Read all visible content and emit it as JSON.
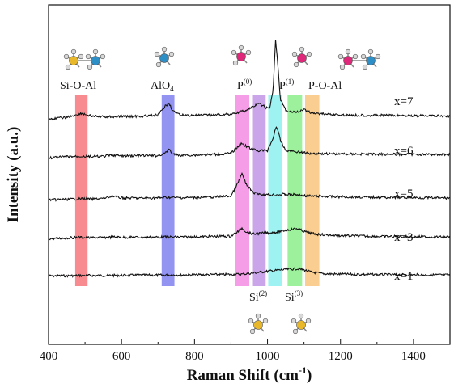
{
  "chart_data": {
    "type": "line",
    "xlabel_main": "Raman Shift (cm",
    "xlabel_sup": "-1",
    "xlabel_tail": ")",
    "ylabel": "Intensity (a.u.)",
    "xlim": [
      400,
      1500
    ],
    "x_ticks": [
      400,
      600,
      800,
      1000,
      1200,
      1400
    ],
    "series": [
      {
        "name": "x=1",
        "baseline": 0.0,
        "points": [
          [
            400,
            0.05
          ],
          [
            450,
            0.06
          ],
          [
            500,
            0.09
          ],
          [
            550,
            0.08
          ],
          [
            600,
            0.1
          ],
          [
            650,
            0.11
          ],
          [
            700,
            0.12
          ],
          [
            750,
            0.13
          ],
          [
            800,
            0.14
          ],
          [
            850,
            0.16
          ],
          [
            900,
            0.18
          ],
          [
            930,
            0.2
          ],
          [
            960,
            0.3
          ],
          [
            990,
            0.42
          ],
          [
            1020,
            0.52
          ],
          [
            1050,
            0.62
          ],
          [
            1080,
            0.68
          ],
          [
            1100,
            0.58
          ],
          [
            1120,
            0.38
          ],
          [
            1150,
            0.25
          ],
          [
            1200,
            0.2
          ],
          [
            1250,
            0.18
          ],
          [
            1300,
            0.16
          ],
          [
            1350,
            0.15
          ],
          [
            1400,
            0.14
          ],
          [
            1450,
            0.14
          ],
          [
            1500,
            0.13
          ]
        ]
      },
      {
        "name": "x=3",
        "baseline": 1.0,
        "points": [
          [
            400,
            0.05
          ],
          [
            450,
            0.1
          ],
          [
            480,
            0.18
          ],
          [
            500,
            0.14
          ],
          [
            550,
            0.15
          ],
          [
            580,
            0.2
          ],
          [
            600,
            0.17
          ],
          [
            650,
            0.18
          ],
          [
            700,
            0.19
          ],
          [
            750,
            0.2
          ],
          [
            800,
            0.22
          ],
          [
            850,
            0.24
          ],
          [
            900,
            0.28
          ],
          [
            920,
            0.7
          ],
          [
            930,
            1.0
          ],
          [
            940,
            0.7
          ],
          [
            960,
            0.45
          ],
          [
            990,
            0.55
          ],
          [
            1020,
            0.6
          ],
          [
            1050,
            0.8
          ],
          [
            1080,
            0.95
          ],
          [
            1100,
            0.7
          ],
          [
            1130,
            0.45
          ],
          [
            1200,
            0.32
          ],
          [
            1300,
            0.25
          ],
          [
            1400,
            0.22
          ],
          [
            1500,
            0.2
          ]
        ]
      },
      {
        "name": "x=5",
        "baseline": 2.0,
        "points": [
          [
            400,
            0.05
          ],
          [
            450,
            0.1
          ],
          [
            490,
            0.15
          ],
          [
            520,
            0.12
          ],
          [
            550,
            0.18
          ],
          [
            575,
            0.38
          ],
          [
            600,
            0.22
          ],
          [
            650,
            0.2
          ],
          [
            700,
            0.22
          ],
          [
            730,
            0.28
          ],
          [
            760,
            0.24
          ],
          [
            800,
            0.26
          ],
          [
            850,
            0.3
          ],
          [
            900,
            0.4
          ],
          [
            920,
            1.6
          ],
          [
            930,
            2.4
          ],
          [
            940,
            1.5
          ],
          [
            960,
            0.7
          ],
          [
            990,
            0.5
          ],
          [
            1020,
            0.5
          ],
          [
            1050,
            0.55
          ],
          [
            1080,
            0.5
          ],
          [
            1110,
            0.4
          ],
          [
            1200,
            0.32
          ],
          [
            1300,
            0.28
          ],
          [
            1400,
            0.25
          ],
          [
            1500,
            0.22
          ]
        ]
      },
      {
        "name": "x=6",
        "baseline": 3.0,
        "points": [
          [
            400,
            0.05
          ],
          [
            450,
            0.15
          ],
          [
            490,
            0.2
          ],
          [
            520,
            0.15
          ],
          [
            550,
            0.18
          ],
          [
            575,
            0.3
          ],
          [
            600,
            0.22
          ],
          [
            650,
            0.25
          ],
          [
            700,
            0.25
          ],
          [
            720,
            0.45
          ],
          [
            730,
            0.85
          ],
          [
            740,
            0.4
          ],
          [
            760,
            0.28
          ],
          [
            800,
            0.3
          ],
          [
            850,
            0.34
          ],
          [
            900,
            0.45
          ],
          [
            920,
            1.1
          ],
          [
            930,
            1.35
          ],
          [
            945,
            1.0
          ],
          [
            970,
            0.7
          ],
          [
            1000,
            0.7
          ],
          [
            1015,
            1.8
          ],
          [
            1025,
            2.9
          ],
          [
            1035,
            1.6
          ],
          [
            1050,
            0.7
          ],
          [
            1080,
            0.6
          ],
          [
            1110,
            0.45
          ],
          [
            1200,
            0.4
          ],
          [
            1300,
            0.38
          ],
          [
            1400,
            0.36
          ],
          [
            1500,
            0.35
          ]
        ]
      },
      {
        "name": "x=7",
        "baseline": 4.0,
        "points": [
          [
            400,
            0.05
          ],
          [
            450,
            0.2
          ],
          [
            490,
            0.55
          ],
          [
            520,
            0.3
          ],
          [
            550,
            0.25
          ],
          [
            600,
            0.28
          ],
          [
            650,
            0.3
          ],
          [
            700,
            0.4
          ],
          [
            720,
            1.2
          ],
          [
            730,
            1.5
          ],
          [
            740,
            0.8
          ],
          [
            760,
            0.4
          ],
          [
            800,
            0.38
          ],
          [
            850,
            0.4
          ],
          [
            900,
            0.5
          ],
          [
            940,
            0.8
          ],
          [
            975,
            1.4
          ],
          [
            990,
            1.2
          ],
          [
            1005,
            0.9
          ],
          [
            1015,
            2.5
          ],
          [
            1022,
            7.0
          ],
          [
            1028,
            5.0
          ],
          [
            1035,
            1.8
          ],
          [
            1050,
            0.8
          ],
          [
            1080,
            0.65
          ],
          [
            1100,
            0.9
          ],
          [
            1120,
            0.6
          ],
          [
            1200,
            0.4
          ],
          [
            1300,
            0.38
          ],
          [
            1400,
            0.36
          ],
          [
            1500,
            0.3
          ]
        ]
      }
    ],
    "bands": [
      {
        "x": [
          473,
          507
        ],
        "color": "#f7777c",
        "label": "Si-O-Al"
      },
      {
        "x": [
          710,
          745
        ],
        "color": "#8080ee",
        "label": "AlO4"
      },
      {
        "x": [
          912,
          950
        ],
        "color": "#f58ce4",
        "label": "P(0)"
      },
      {
        "x": [
          960,
          995
        ],
        "color": "#c295e6",
        "label": "Si(2)"
      },
      {
        "x": [
          1002,
          1040
        ],
        "color": "#8df0f0",
        "label": "P(1)"
      },
      {
        "x": [
          1055,
          1095
        ],
        "color": "#8cee8c",
        "label": "Si(3)"
      },
      {
        "x": [
          1103,
          1142
        ],
        "color": "#f9c57c",
        "label": "P-O-Al"
      }
    ],
    "annotations": {
      "si_o_al": "Si-O-Al",
      "alo4_main": "AlO",
      "alo4_sub": "4",
      "p0_main": "P",
      "p0_sup": "(0)",
      "p1_main": "P",
      "p1_sup": "(1)",
      "p_o_al": "P-O-Al",
      "si2_main": "Si",
      "si2_sup": "(2)",
      "si3_main": "Si",
      "si3_sup": "(3)"
    },
    "molecule_colors": {
      "si": "#e8b82a",
      "al": "#2e8fc7",
      "p": "#e0287a",
      "h": "#d8d8d8",
      "o": "#bbbbbb"
    }
  }
}
